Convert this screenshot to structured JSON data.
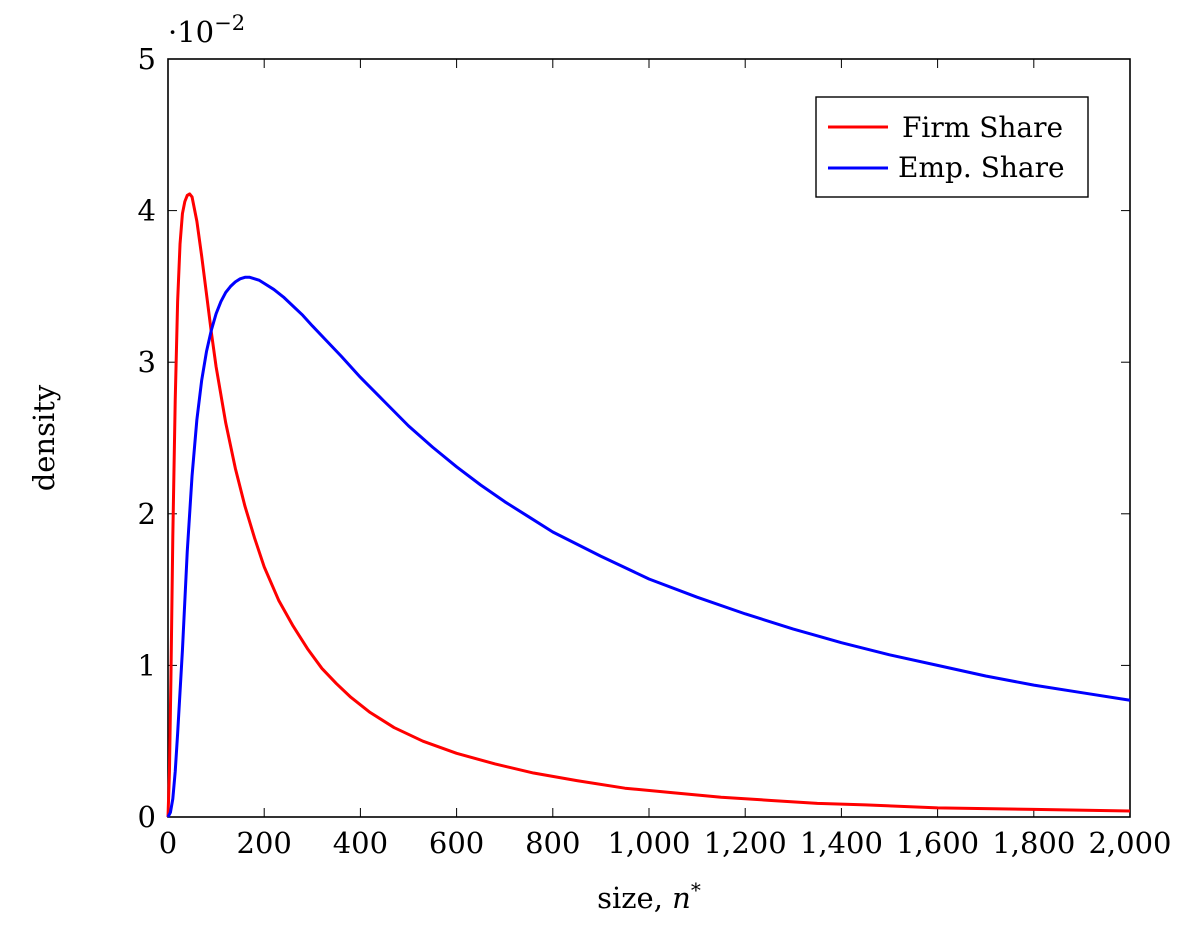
{
  "chart_data": {
    "type": "line",
    "xlabel_text": "size, ",
    "xlabel_var": "n",
    "xlabel_sup": "*",
    "ylabel": "density",
    "y_multiplier_base": "·10",
    "y_multiplier_exp": "−2",
    "xlim": [
      0,
      2000
    ],
    "ylim": [
      0,
      5
    ],
    "xticks": [
      0,
      200,
      400,
      600,
      800,
      1000,
      1200,
      1400,
      1600,
      1800,
      2000
    ],
    "xtick_labels": [
      "0",
      "200",
      "400",
      "600",
      "800",
      "1,000",
      "1,200",
      "1,400",
      "1,600",
      "1,800",
      "2,000"
    ],
    "yticks": [
      0,
      1,
      2,
      3,
      4,
      5
    ],
    "ytick_labels": [
      "0",
      "1",
      "2",
      "3",
      "4",
      "5"
    ],
    "grid": false,
    "legend_position": "top-right",
    "series": [
      {
        "name": "Firm Share",
        "color": "#ff0000",
        "x": [
          0,
          3,
          6,
          10,
          15,
          20,
          25,
          30,
          35,
          40,
          45,
          50,
          60,
          70,
          80,
          90,
          100,
          120,
          140,
          160,
          180,
          200,
          230,
          260,
          290,
          320,
          350,
          380,
          420,
          470,
          530,
          600,
          680,
          760,
          850,
          950,
          1050,
          1150,
          1250,
          1350,
          1450,
          1600,
          1800,
          2000
        ],
        "y": [
          0,
          0.3,
          0.9,
          1.85,
          2.75,
          3.4,
          3.78,
          3.98,
          4.06,
          4.1,
          4.11,
          4.09,
          3.93,
          3.7,
          3.45,
          3.2,
          2.97,
          2.6,
          2.3,
          2.05,
          1.84,
          1.65,
          1.43,
          1.26,
          1.11,
          0.98,
          0.88,
          0.79,
          0.69,
          0.59,
          0.5,
          0.42,
          0.35,
          0.29,
          0.24,
          0.19,
          0.16,
          0.13,
          0.11,
          0.09,
          0.08,
          0.06,
          0.05,
          0.04
        ]
      },
      {
        "name": "Emp. Share",
        "color": "#0000ff",
        "x": [
          0,
          5,
          10,
          15,
          20,
          30,
          40,
          50,
          60,
          70,
          80,
          90,
          100,
          110,
          120,
          130,
          140,
          150,
          160,
          170,
          180,
          190,
          200,
          220,
          240,
          260,
          280,
          300,
          330,
          360,
          400,
          450,
          500,
          550,
          600,
          650,
          700,
          750,
          800,
          850,
          900,
          1000,
          1100,
          1200,
          1300,
          1400,
          1500,
          1600,
          1700,
          1800,
          1900,
          2000
        ],
        "y": [
          0,
          0.03,
          0.12,
          0.3,
          0.55,
          1.1,
          1.75,
          2.25,
          2.62,
          2.88,
          3.07,
          3.21,
          3.32,
          3.4,
          3.46,
          3.5,
          3.53,
          3.55,
          3.56,
          3.56,
          3.55,
          3.54,
          3.52,
          3.48,
          3.43,
          3.37,
          3.31,
          3.24,
          3.14,
          3.04,
          2.9,
          2.74,
          2.58,
          2.44,
          2.31,
          2.19,
          2.08,
          1.98,
          1.88,
          1.8,
          1.72,
          1.57,
          1.45,
          1.34,
          1.24,
          1.15,
          1.07,
          1.0,
          0.93,
          0.87,
          0.82,
          0.77
        ]
      }
    ]
  }
}
